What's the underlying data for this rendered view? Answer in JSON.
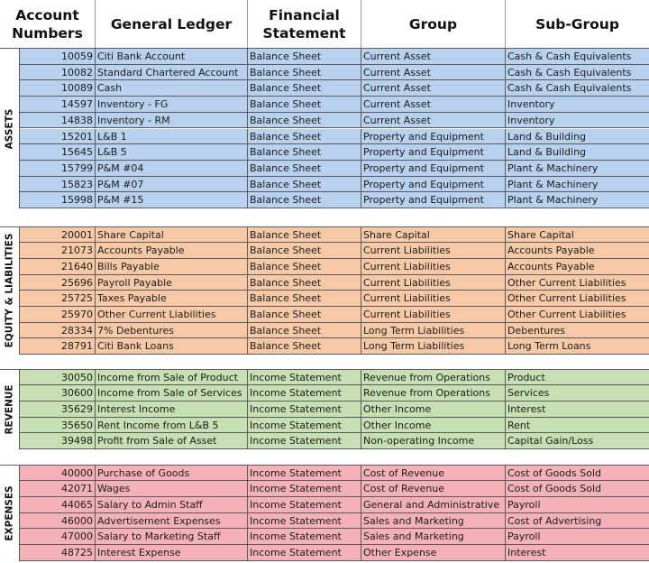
{
  "headers": {
    "account_numbers": "Account Numbers",
    "general_ledger": "General Ledger",
    "financial_statement": "Financial Statement",
    "group": "Group",
    "sub_group": "Sub-Group"
  },
  "colors": {
    "assets": "#b7d1ee",
    "equity_liabilities": "#f8c9a6",
    "revenue": "#c6e0b3",
    "expenses": "#f4b2b8"
  },
  "sections": [
    {
      "key": "assets",
      "label": "ASSETS",
      "rows": [
        [
          "10059",
          "Citi Bank Account",
          "Balance Sheet",
          "Current Asset",
          "Cash & Cash Equivalents"
        ],
        [
          "10082",
          "Standard Chartered Account",
          "Balance Sheet",
          "Current Asset",
          "Cash & Cash Equivalents"
        ],
        [
          "10089",
          "Cash",
          "Balance Sheet",
          "Current Asset",
          "Cash & Cash Equivalents"
        ],
        [
          "14597",
          "Inventory - FG",
          "Balance Sheet",
          "Current Asset",
          "Inventory"
        ],
        [
          "14838",
          "Inventory - RM",
          "Balance Sheet",
          "Current Asset",
          "Inventory"
        ],
        [
          "15201",
          "L&B 1",
          "Balance Sheet",
          "Property and Equipment",
          "Land & Building"
        ],
        [
          "15645",
          "L&B 5",
          "Balance Sheet",
          "Property and Equipment",
          "Land & Building"
        ],
        [
          "15799",
          "P&M #04",
          "Balance Sheet",
          "Property and Equipment",
          "Plant & Machinery"
        ],
        [
          "15823",
          "P&M #07",
          "Balance Sheet",
          "Property and Equipment",
          "Plant & Machinery"
        ],
        [
          "15998",
          "P&M #15",
          "Balance Sheet",
          "Property and Equipment",
          "Plant & Machinery"
        ]
      ]
    },
    {
      "key": "equity_liabilities",
      "label": "EQUITY & LIABILITIES",
      "rows": [
        [
          "20001",
          "Share Capital",
          "Balance Sheet",
          "Share Capital",
          "Share Capital"
        ],
        [
          "21073",
          "Accounts Payable",
          "Balance Sheet",
          "Current Liabilities",
          "Accounts Payable"
        ],
        [
          "21640",
          "Bills Payable",
          "Balance Sheet",
          "Current Liabilities",
          "Accounts Payable"
        ],
        [
          "25696",
          "Payroll Payable",
          "Balance Sheet",
          "Current Liabilities",
          "Other Current Liabilities"
        ],
        [
          "25725",
          "Taxes Payable",
          "Balance Sheet",
          "Current Liabilities",
          "Other Current Liabilities"
        ],
        [
          "25970",
          "Other Current Liabilities",
          "Balance Sheet",
          "Current Liabilities",
          "Other Current Liabilities"
        ],
        [
          "28334",
          "7% Debentures",
          "Balance Sheet",
          "Long Term Liabilities",
          "Debentures"
        ],
        [
          "28791",
          "Citi Bank Loans",
          "Balance Sheet",
          "Long Term Liabilities",
          "Long Term Loans"
        ]
      ]
    },
    {
      "key": "revenue",
      "label": "REVENUE",
      "rows": [
        [
          "30050",
          "Income from Sale of Product",
          "Income Statement",
          "Revenue from Operations",
          "Product"
        ],
        [
          "30600",
          "Income from Sale of Services",
          "Income Statement",
          "Revenue from Operations",
          "Services"
        ],
        [
          "35629",
          "Interest Income",
          "Income Statement",
          "Other Income",
          "Interest"
        ],
        [
          "35650",
          "Rent Income from L&B 5",
          "Income Statement",
          "Other Income",
          "Rent"
        ],
        [
          "39498",
          "Profit from Sale of Asset",
          "Income Statement",
          "Non-operating Income",
          "Capital Gain/Loss"
        ]
      ]
    },
    {
      "key": "expenses",
      "label": "EXPENSES",
      "rows": [
        [
          "40000",
          "Purchase of Goods",
          "Income Statement",
          "Cost of Revenue",
          "Cost of Goods Sold"
        ],
        [
          "42071",
          "Wages",
          "Income Statement",
          "Cost of Revenue",
          "Cost of Goods Sold"
        ],
        [
          "44065",
          "Salary to Admin Staff",
          "Income Statement",
          "General and Administrative",
          "Payroll"
        ],
        [
          "46000",
          "Advertisement Expenses",
          "Income Statement",
          "Sales and Marketing",
          "Cost of Advertising"
        ],
        [
          "47000",
          "Salary to Marketing Staff",
          "Income Statement",
          "Sales and Marketing",
          "Payroll"
        ],
        [
          "48725",
          "Interest Expense",
          "Income Statement",
          "Other Expense",
          "Interest"
        ]
      ]
    }
  ]
}
